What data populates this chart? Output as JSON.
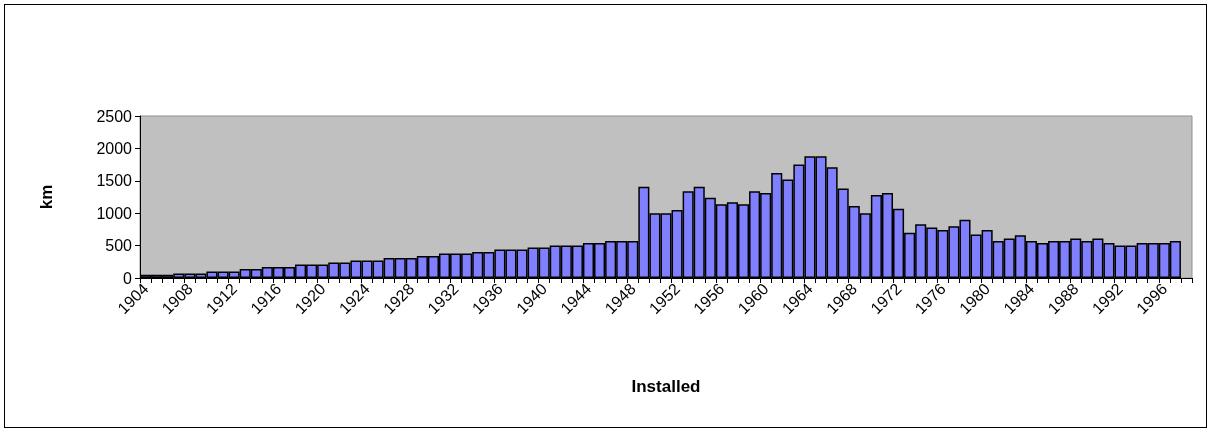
{
  "chart_data": {
    "type": "bar",
    "xlabel": "Installed",
    "ylabel": "km",
    "categories": [
      "1904",
      null,
      null,
      null,
      "1908",
      null,
      null,
      null,
      "1912",
      null,
      null,
      null,
      "1916",
      null,
      null,
      null,
      "1920",
      null,
      null,
      null,
      "1924",
      null,
      null,
      null,
      "1928",
      null,
      null,
      null,
      "1932",
      null,
      null,
      null,
      "1936",
      null,
      null,
      null,
      "1940",
      null,
      null,
      null,
      "1944",
      null,
      null,
      null,
      "1948",
      null,
      null,
      null,
      "1952",
      null,
      null,
      null,
      "1956",
      null,
      null,
      null,
      "1960",
      null,
      null,
      null,
      "1964",
      null,
      null,
      null,
      "1968",
      null,
      null,
      null,
      "1972",
      null,
      null,
      null,
      "1976",
      null,
      null,
      null,
      "1980",
      null,
      null,
      null,
      "1984",
      null,
      null,
      null,
      "1988",
      null,
      null,
      null,
      "1992",
      null,
      null,
      null,
      "1996",
      null,
      null
    ],
    "values": [
      50,
      50,
      50,
      70,
      70,
      70,
      100,
      100,
      100,
      140,
      140,
      170,
      170,
      170,
      210,
      210,
      210,
      240,
      240,
      270,
      270,
      270,
      310,
      310,
      310,
      340,
      340,
      380,
      380,
      380,
      400,
      400,
      440,
      440,
      440,
      470,
      470,
      500,
      500,
      500,
      540,
      540,
      570,
      570,
      570,
      1410,
      1000,
      1000,
      1050,
      1340,
      1410,
      1240,
      1140,
      1170,
      1140,
      1340,
      1310,
      1620,
      1520,
      1750,
      1880,
      1880,
      1710,
      1380,
      1110,
      1000,
      1280,
      1310,
      1070,
      700,
      830,
      780,
      740,
      800,
      900,
      670,
      740,
      570,
      610,
      660,
      570,
      540,
      570,
      570,
      610,
      570,
      610,
      540,
      500,
      500,
      540,
      540,
      540,
      570,
      null
    ],
    "color": "#8080ff",
    "ylim": [
      0,
      2500
    ],
    "yticks": [
      0,
      500,
      1000,
      1500,
      2000,
      2500
    ],
    "grid": false
  }
}
